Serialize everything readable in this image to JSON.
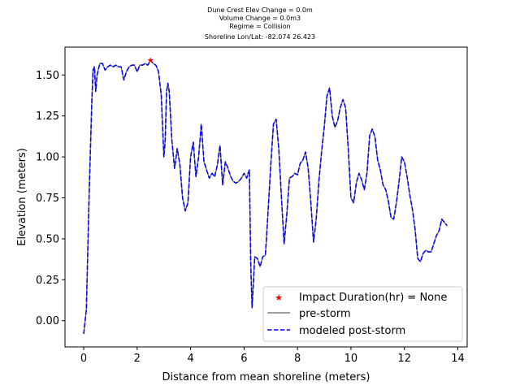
{
  "chart_data": {
    "type": "line",
    "title_lines": [
      "Dune Crest Elev Change = 0.0m",
      "Volume Change = 0.0m3",
      "Regime = Collision",
      "Shoreline Lon/Lat: -82.074 26.423"
    ],
    "xlabel": "Distance from mean shoreline (meters)",
    "ylabel": "Elevation (meters)",
    "xlim": [
      -0.7,
      14.35
    ],
    "ylim": [
      -0.16,
      1.67
    ],
    "xticks": [
      0,
      2,
      4,
      6,
      8,
      10,
      12,
      14
    ],
    "yticks": [
      0.0,
      0.25,
      0.5,
      0.75,
      1.0,
      1.25,
      1.5
    ],
    "ytick_labels": [
      "0.00",
      "0.25",
      "0.50",
      "0.75",
      "1.00",
      "1.25",
      "1.50"
    ],
    "legend_position": "lower right",
    "marker": {
      "name": "Impact Duration(hr) = None",
      "x": 2.5,
      "y": 1.59,
      "color": "#ff0000"
    },
    "series": [
      {
        "name": "pre-storm",
        "color": "#808080",
        "style": "solid"
      },
      {
        "name": "modeled post-storm",
        "color": "#0000ff",
        "style": "dashed"
      }
    ],
    "x": [
      0,
      0.1,
      0.2,
      0.3,
      0.35,
      0.4,
      0.45,
      0.5,
      0.6,
      0.7,
      0.8,
      0.9,
      1.0,
      1.1,
      1.2,
      1.3,
      1.4,
      1.5,
      1.6,
      1.7,
      1.8,
      1.9,
      2.0,
      2.1,
      2.2,
      2.3,
      2.4,
      2.5,
      2.6,
      2.7,
      2.8,
      2.9,
      3.0,
      3.05,
      3.1,
      3.15,
      3.2,
      3.3,
      3.4,
      3.5,
      3.6,
      3.7,
      3.8,
      3.9,
      4.0,
      4.1,
      4.2,
      4.3,
      4.4,
      4.5,
      4.6,
      4.7,
      4.8,
      4.9,
      5.0,
      5.1,
      5.2,
      5.3,
      5.4,
      5.5,
      5.6,
      5.7,
      5.8,
      5.9,
      6.0,
      6.1,
      6.15,
      6.2,
      6.25,
      6.3,
      6.4,
      6.5,
      6.6,
      6.7,
      6.8,
      6.9,
      7.0,
      7.1,
      7.2,
      7.3,
      7.4,
      7.5,
      7.6,
      7.7,
      7.8,
      7.9,
      8.0,
      8.1,
      8.2,
      8.3,
      8.4,
      8.5,
      8.6,
      8.7,
      8.8,
      8.9,
      9.0,
      9.1,
      9.2,
      9.3,
      9.4,
      9.5,
      9.6,
      9.7,
      9.8,
      9.9,
      10.0,
      10.1,
      10.2,
      10.3,
      10.4,
      10.5,
      10.6,
      10.7,
      10.8,
      10.9,
      11.0,
      11.1,
      11.2,
      11.3,
      11.4,
      11.5,
      11.6,
      11.7,
      11.8,
      11.9,
      12.0,
      12.1,
      12.2,
      12.3,
      12.4,
      12.5,
      12.6,
      12.7,
      12.8,
      12.9,
      13.0,
      13.1,
      13.2,
      13.3,
      13.4,
      13.5,
      13.6
    ],
    "pre_storm": [
      -0.08,
      0.07,
      0.75,
      1.32,
      1.53,
      1.55,
      1.4,
      1.5,
      1.57,
      1.57,
      1.53,
      1.55,
      1.56,
      1.55,
      1.56,
      1.55,
      1.55,
      1.47,
      1.52,
      1.55,
      1.56,
      1.56,
      1.52,
      1.56,
      1.56,
      1.57,
      1.56,
      1.59,
      1.57,
      1.56,
      1.52,
      1.38,
      1.0,
      1.1,
      1.4,
      1.45,
      1.4,
      1.1,
      0.93,
      1.05,
      0.95,
      0.75,
      0.67,
      0.72,
      1.0,
      1.09,
      0.88,
      1.0,
      1.2,
      0.97,
      0.92,
      0.87,
      0.9,
      0.88,
      0.95,
      1.07,
      0.83,
      0.97,
      0.93,
      0.88,
      0.85,
      0.84,
      0.85,
      0.87,
      0.9,
      0.87,
      0.9,
      0.92,
      0.35,
      0.08,
      0.39,
      0.38,
      0.33,
      0.39,
      0.4,
      0.67,
      0.95,
      1.2,
      1.23,
      1.05,
      0.75,
      0.47,
      0.65,
      0.87,
      0.88,
      0.9,
      0.89,
      0.96,
      0.98,
      1.03,
      0.93,
      0.72,
      0.48,
      0.62,
      0.85,
      1.03,
      1.18,
      1.37,
      1.42,
      1.25,
      1.18,
      1.22,
      1.3,
      1.35,
      1.3,
      1.05,
      0.75,
      0.72,
      0.84,
      0.9,
      0.86,
      0.8,
      0.9,
      1.13,
      1.17,
      1.12,
      0.98,
      0.92,
      0.83,
      0.8,
      0.73,
      0.63,
      0.62,
      0.72,
      0.85,
      1.0,
      0.97,
      0.88,
      0.77,
      0.68,
      0.56,
      0.38,
      0.36,
      0.41,
      0.43,
      0.42,
      0.42,
      0.47,
      0.52,
      0.55,
      0.62,
      0.6,
      0.58
    ],
    "post_storm": [
      -0.08,
      0.07,
      0.75,
      1.32,
      1.53,
      1.55,
      1.4,
      1.5,
      1.57,
      1.57,
      1.53,
      1.55,
      1.56,
      1.55,
      1.56,
      1.55,
      1.55,
      1.47,
      1.52,
      1.55,
      1.56,
      1.56,
      1.52,
      1.56,
      1.56,
      1.57,
      1.56,
      1.59,
      1.57,
      1.56,
      1.52,
      1.38,
      1.0,
      1.1,
      1.4,
      1.45,
      1.4,
      1.1,
      0.93,
      1.05,
      0.95,
      0.75,
      0.67,
      0.72,
      1.0,
      1.09,
      0.88,
      1.0,
      1.2,
      0.97,
      0.92,
      0.87,
      0.9,
      0.88,
      0.95,
      1.07,
      0.83,
      0.97,
      0.93,
      0.88,
      0.85,
      0.84,
      0.85,
      0.87,
      0.9,
      0.87,
      0.9,
      0.92,
      0.35,
      0.08,
      0.39,
      0.38,
      0.33,
      0.39,
      0.4,
      0.67,
      0.95,
      1.2,
      1.23,
      1.05,
      0.75,
      0.47,
      0.65,
      0.87,
      0.88,
      0.9,
      0.89,
      0.96,
      0.98,
      1.03,
      0.93,
      0.72,
      0.48,
      0.62,
      0.85,
      1.03,
      1.18,
      1.37,
      1.42,
      1.25,
      1.18,
      1.22,
      1.3,
      1.35,
      1.3,
      1.05,
      0.75,
      0.72,
      0.84,
      0.9,
      0.86,
      0.8,
      0.9,
      1.13,
      1.17,
      1.12,
      0.98,
      0.92,
      0.83,
      0.8,
      0.73,
      0.63,
      0.62,
      0.72,
      0.85,
      1.0,
      0.97,
      0.88,
      0.77,
      0.68,
      0.56,
      0.38,
      0.36,
      0.41,
      0.43,
      0.42,
      0.42,
      0.47,
      0.52,
      0.55,
      0.62,
      0.6,
      0.58
    ]
  }
}
